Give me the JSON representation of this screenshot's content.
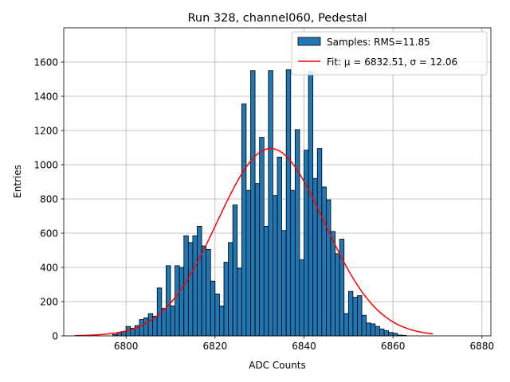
{
  "chart_data": {
    "type": "bar",
    "title": "Run 328, channel060, Pedestal",
    "xlabel": "ADC Counts",
    "ylabel": "Entries",
    "xlim": [
      6786,
      6882
    ],
    "ylim": [
      0,
      1800
    ],
    "xticks": [
      6800,
      6820,
      6840,
      6860,
      6880
    ],
    "yticks": [
      0,
      200,
      400,
      600,
      800,
      1000,
      1200,
      1400,
      1600
    ],
    "grid": true,
    "legend_position": "top-right",
    "legend": {
      "samples_label": "Samples: RMS=11.85",
      "fit_label": "Fit: μ = 6832.51, σ = 12.06"
    },
    "colors": {
      "bar_fill": "#1f77b4",
      "bar_edge": "#000000",
      "fit_line": "#ff0000",
      "grid": "#b0b0b0"
    },
    "histogram": {
      "bin_width": 1,
      "bins": [
        {
          "x": 6797,
          "y": 8
        },
        {
          "x": 6798,
          "y": 20
        },
        {
          "x": 6799,
          "y": 25
        },
        {
          "x": 6800,
          "y": 55
        },
        {
          "x": 6801,
          "y": 45
        },
        {
          "x": 6802,
          "y": 60
        },
        {
          "x": 6803,
          "y": 95
        },
        {
          "x": 6804,
          "y": 105
        },
        {
          "x": 6805,
          "y": 130
        },
        {
          "x": 6806,
          "y": 115
        },
        {
          "x": 6807,
          "y": 280
        },
        {
          "x": 6808,
          "y": 160
        },
        {
          "x": 6809,
          "y": 410
        },
        {
          "x": 6810,
          "y": 175
        },
        {
          "x": 6811,
          "y": 410
        },
        {
          "x": 6812,
          "y": 400
        },
        {
          "x": 6813,
          "y": 585
        },
        {
          "x": 6814,
          "y": 545
        },
        {
          "x": 6815,
          "y": 585
        },
        {
          "x": 6816,
          "y": 640
        },
        {
          "x": 6817,
          "y": 525
        },
        {
          "x": 6818,
          "y": 505
        },
        {
          "x": 6819,
          "y": 320
        },
        {
          "x": 6820,
          "y": 245
        },
        {
          "x": 6821,
          "y": 175
        },
        {
          "x": 6822,
          "y": 430
        },
        {
          "x": 6823,
          "y": 545
        },
        {
          "x": 6824,
          "y": 765
        },
        {
          "x": 6825,
          "y": 395
        },
        {
          "x": 6826,
          "y": 1355
        },
        {
          "x": 6827,
          "y": 850
        },
        {
          "x": 6828,
          "y": 1550
        },
        {
          "x": 6829,
          "y": 890
        },
        {
          "x": 6830,
          "y": 1160
        },
        {
          "x": 6831,
          "y": 640
        },
        {
          "x": 6832,
          "y": 1550
        },
        {
          "x": 6833,
          "y": 820
        },
        {
          "x": 6834,
          "y": 1045
        },
        {
          "x": 6835,
          "y": 615
        },
        {
          "x": 6836,
          "y": 1555
        },
        {
          "x": 6837,
          "y": 850
        },
        {
          "x": 6838,
          "y": 1205
        },
        {
          "x": 6839,
          "y": 445
        },
        {
          "x": 6840,
          "y": 1085
        },
        {
          "x": 6841,
          "y": 1545
        },
        {
          "x": 6842,
          "y": 920
        },
        {
          "x": 6843,
          "y": 1095
        },
        {
          "x": 6844,
          "y": 870
        },
        {
          "x": 6845,
          "y": 795
        },
        {
          "x": 6846,
          "y": 610
        },
        {
          "x": 6847,
          "y": 480
        },
        {
          "x": 6848,
          "y": 565
        },
        {
          "x": 6849,
          "y": 130
        },
        {
          "x": 6850,
          "y": 260
        },
        {
          "x": 6851,
          "y": 225
        },
        {
          "x": 6852,
          "y": 235
        },
        {
          "x": 6853,
          "y": 120
        },
        {
          "x": 6854,
          "y": 75
        },
        {
          "x": 6855,
          "y": 70
        },
        {
          "x": 6856,
          "y": 55
        },
        {
          "x": 6857,
          "y": 40
        },
        {
          "x": 6858,
          "y": 30
        },
        {
          "x": 6859,
          "y": 20
        },
        {
          "x": 6860,
          "y": 15
        },
        {
          "x": 6861,
          "y": 5
        },
        {
          "x": 6862,
          "y": 3
        }
      ]
    },
    "fit": {
      "type": "gaussian",
      "mean": 6832.51,
      "sigma": 12.06,
      "amplitude": 1095,
      "x_range": [
        6788.5,
        6869
      ]
    }
  }
}
